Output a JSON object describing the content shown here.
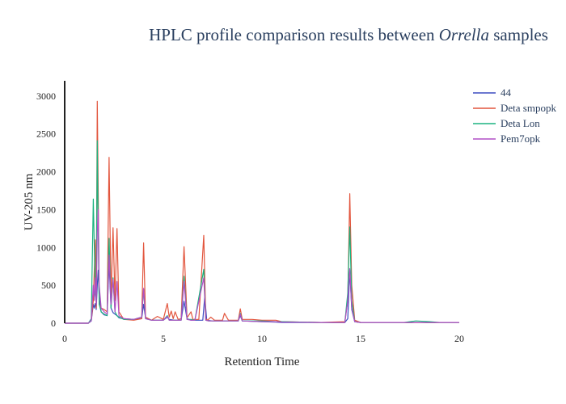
{
  "chart_data": {
    "type": "line",
    "title_prefix": "HPLC profile comparison results between ",
    "title_italic": "Orrella",
    "title_suffix": " samples",
    "xlabel": "Retention Time",
    "ylabel": "UV-205 nm",
    "xlim": [
      0,
      20
    ],
    "ylim": [
      0,
      3200
    ],
    "xticks": [
      0,
      5,
      10,
      15,
      20
    ],
    "yticks": [
      0,
      500,
      1000,
      1500,
      2000,
      2500,
      3000
    ],
    "grid": false,
    "legend_position": "top-right",
    "series": [
      {
        "name": "44",
        "color": "#3b4cc0",
        "x": [
          0,
          1.2,
          1.35,
          1.45,
          1.5,
          1.55,
          1.6,
          1.65,
          1.7,
          1.75,
          1.85,
          2.0,
          2.15,
          2.25,
          2.35,
          2.45,
          2.55,
          2.65,
          2.75,
          3.0,
          3.5,
          3.9,
          4.0,
          4.1,
          4.4,
          5.0,
          5.2,
          5.3,
          5.6,
          5.9,
          6.05,
          6.2,
          6.4,
          6.6,
          7.0,
          7.1,
          7.2,
          7.5,
          8.0,
          8.8,
          8.9,
          9.0,
          10.0,
          10.7,
          11.0,
          13.0,
          14.2,
          14.35,
          14.45,
          14.55,
          14.7,
          15.0,
          16.0,
          17.2,
          18.0,
          18.5,
          19.0,
          20.0
        ],
        "y": [
          0,
          0,
          30,
          250,
          200,
          260,
          180,
          500,
          700,
          350,
          150,
          110,
          100,
          800,
          200,
          140,
          120,
          100,
          70,
          60,
          50,
          60,
          250,
          70,
          40,
          40,
          80,
          50,
          40,
          40,
          290,
          60,
          40,
          40,
          40,
          350,
          40,
          30,
          30,
          30,
          100,
          30,
          20,
          15,
          10,
          10,
          10,
          60,
          700,
          180,
          20,
          10,
          10,
          10,
          10,
          10,
          10,
          10
        ]
      },
      {
        "name": "Deta smpopk",
        "color": "#e2553d",
        "x": [
          0,
          1.2,
          1.35,
          1.45,
          1.55,
          1.6,
          1.65,
          1.7,
          1.75,
          1.85,
          2.0,
          2.15,
          2.25,
          2.35,
          2.45,
          2.55,
          2.65,
          2.75,
          3.0,
          3.5,
          3.9,
          4.0,
          4.1,
          4.4,
          4.7,
          5.0,
          5.2,
          5.3,
          5.4,
          5.5,
          5.6,
          5.75,
          5.9,
          6.05,
          6.2,
          6.4,
          6.5,
          6.8,
          7.05,
          7.15,
          7.25,
          7.4,
          7.6,
          8.0,
          8.1,
          8.3,
          8.8,
          8.9,
          9.0,
          9.5,
          10.0,
          10.7,
          11.0,
          13.0,
          14.2,
          14.35,
          14.45,
          14.55,
          14.7,
          15.0,
          16.0,
          17.2,
          18.0,
          18.5,
          19.0,
          20.0
        ],
        "y": [
          0,
          0,
          40,
          300,
          1100,
          200,
          2930,
          1700,
          250,
          200,
          180,
          150,
          2190,
          300,
          1260,
          300,
          1250,
          150,
          50,
          40,
          60,
          1060,
          80,
          40,
          90,
          50,
          260,
          80,
          160,
          60,
          150,
          50,
          60,
          1010,
          70,
          150,
          50,
          50,
          1160,
          60,
          40,
          80,
          40,
          40,
          130,
          40,
          40,
          190,
          50,
          50,
          40,
          40,
          20,
          10,
          20,
          300,
          1710,
          500,
          40,
          10,
          10,
          10,
          10,
          10,
          10,
          10
        ]
      },
      {
        "name": "Deta Lon",
        "color": "#1bb380",
        "x": [
          0,
          1.2,
          1.35,
          1.45,
          1.55,
          1.6,
          1.65,
          1.7,
          1.75,
          1.85,
          2.0,
          2.15,
          2.25,
          2.35,
          2.45,
          2.55,
          2.65,
          2.75,
          3.0,
          3.5,
          3.9,
          4.0,
          4.1,
          4.4,
          5.0,
          5.2,
          5.3,
          5.6,
          5.9,
          6.05,
          6.2,
          6.4,
          6.6,
          7.05,
          7.15,
          7.3,
          8.0,
          8.8,
          8.9,
          9.0,
          10.0,
          10.7,
          11.0,
          13.0,
          14.2,
          14.35,
          14.45,
          14.55,
          14.7,
          15.0,
          16.0,
          17.2,
          17.8,
          18.5,
          19.0,
          20.0
        ],
        "y": [
          0,
          0,
          60,
          1640,
          400,
          300,
          2410,
          1200,
          250,
          150,
          120,
          100,
          1120,
          200,
          600,
          150,
          100,
          80,
          50,
          50,
          80,
          450,
          60,
          40,
          40,
          100,
          40,
          40,
          40,
          620,
          50,
          50,
          40,
          710,
          40,
          30,
          30,
          30,
          130,
          30,
          30,
          20,
          20,
          10,
          10,
          400,
          1270,
          300,
          20,
          10,
          10,
          10,
          30,
          20,
          10,
          10
        ]
      },
      {
        "name": "Pem7opk",
        "color": "#b14fc5",
        "x": [
          0,
          1.2,
          1.35,
          1.45,
          1.5,
          1.55,
          1.6,
          1.65,
          1.7,
          1.75,
          1.85,
          2.0,
          2.15,
          2.25,
          2.35,
          2.45,
          2.55,
          2.65,
          2.75,
          3.0,
          3.5,
          3.9,
          4.0,
          4.1,
          4.4,
          5.0,
          5.2,
          5.3,
          5.6,
          5.9,
          6.05,
          6.2,
          6.4,
          6.6,
          7.05,
          7.15,
          7.3,
          8.0,
          8.8,
          8.9,
          9.0,
          10.0,
          10.7,
          11.0,
          13.0,
          14.2,
          14.35,
          14.45,
          14.55,
          14.7,
          15.0,
          16.0,
          17.2,
          18.0,
          18.5,
          19.0,
          20.0
        ],
        "y": [
          0,
          0,
          40,
          500,
          300,
          600,
          250,
          1200,
          1500,
          500,
          200,
          150,
          120,
          900,
          250,
          580,
          150,
          550,
          100,
          60,
          50,
          80,
          460,
          60,
          40,
          40,
          90,
          40,
          40,
          40,
          550,
          50,
          40,
          40,
          600,
          40,
          30,
          30,
          30,
          120,
          30,
          20,
          20,
          15,
          10,
          10,
          300,
          720,
          200,
          20,
          10,
          10,
          10,
          10,
          10,
          10,
          10
        ]
      }
    ]
  }
}
